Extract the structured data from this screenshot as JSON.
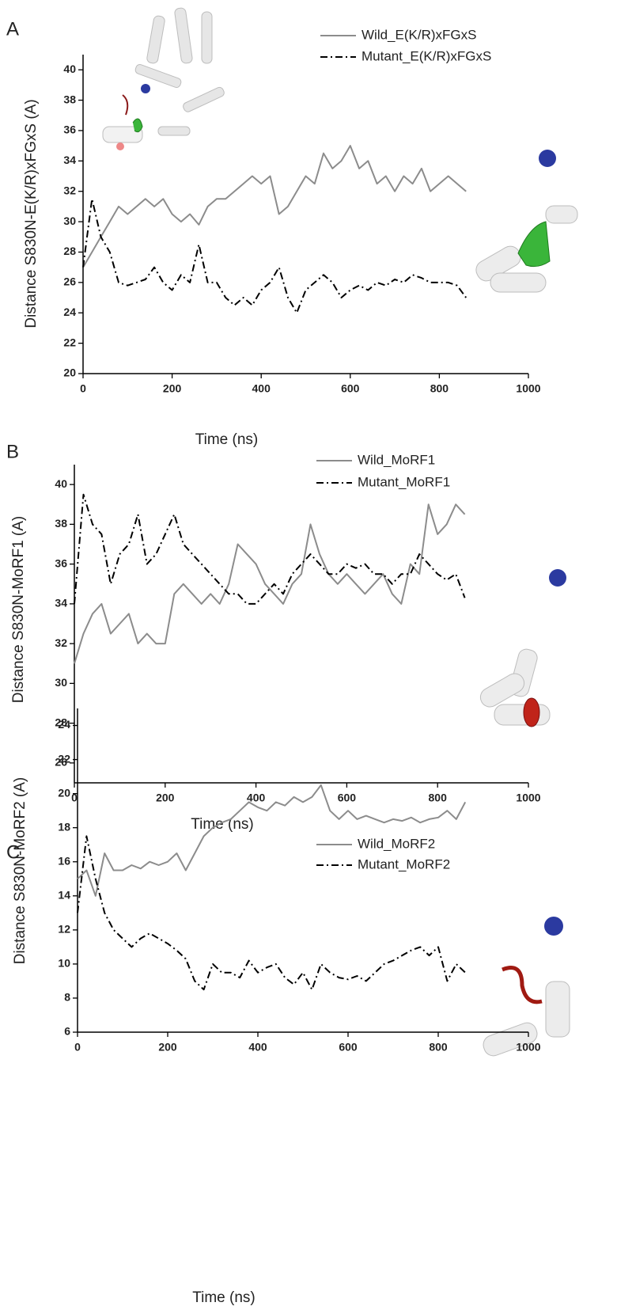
{
  "chart_data": [
    {
      "type": "line",
      "label": "A",
      "x_label": "Time (ns)",
      "y_label": "Distance S830N-E(K/R)xFGxS (A)",
      "xlim": [
        0,
        1000
      ],
      "ylim": [
        20,
        41
      ],
      "xticks": [
        0,
        200,
        400,
        600,
        800,
        1000
      ],
      "yticks": [
        20,
        22,
        24,
        26,
        28,
        30,
        32,
        34,
        36,
        38,
        40
      ],
      "x": [
        0,
        20,
        40,
        60,
        80,
        100,
        120,
        140,
        160,
        180,
        200,
        220,
        240,
        260,
        280,
        300,
        320,
        340,
        360,
        380,
        400,
        420,
        440,
        460,
        480,
        500,
        520,
        540,
        560,
        580,
        600,
        620,
        640,
        660,
        680,
        700,
        720,
        740,
        760,
        780,
        800,
        820,
        840,
        860
      ],
      "series": [
        {
          "name": "Wild_E(K/R)xFGxS",
          "color": "#8c8c8c",
          "style": "solid",
          "values": [
            27,
            28,
            29,
            30,
            31,
            30.5,
            31,
            31.5,
            31,
            31.5,
            30.5,
            30,
            30.5,
            29.8,
            31,
            31.5,
            31.5,
            32,
            32.5,
            33,
            32.5,
            33,
            30.5,
            31,
            32,
            33,
            32.5,
            34.5,
            33.5,
            34,
            35,
            33.5,
            34,
            32.5,
            33,
            32,
            33,
            32.5,
            33.5,
            32,
            32.5,
            33,
            32.5,
            32
          ]
        },
        {
          "name": "Mutant_E(K/R)xFGxS",
          "color": "#000000",
          "style": "dashdot",
          "values": [
            27,
            31.5,
            29,
            28,
            26,
            25.8,
            26,
            26.2,
            27,
            26,
            25.5,
            26.5,
            26,
            28.5,
            26,
            26,
            25,
            24.5,
            25,
            24.5,
            25.5,
            26,
            27,
            25,
            24,
            25.5,
            26,
            26.5,
            26,
            25,
            25.5,
            25.8,
            25.5,
            26,
            25.8,
            26.2,
            26,
            26.5,
            26.3,
            26,
            26,
            26,
            25.8,
            25
          ]
        }
      ]
    },
    {
      "type": "line",
      "label": "B",
      "x_label": "Time (ns)",
      "y_label": "Distance S830N-MoRF1 (A)",
      "xlim": [
        0,
        1000
      ],
      "ylim": [
        25,
        41
      ],
      "xticks": [
        0,
        200,
        400,
        600,
        800,
        1000
      ],
      "yticks": [
        26,
        28,
        30,
        32,
        34,
        36,
        38,
        40
      ],
      "x": [
        0,
        20,
        40,
        60,
        80,
        100,
        120,
        140,
        160,
        180,
        200,
        220,
        240,
        260,
        280,
        300,
        320,
        340,
        360,
        380,
        400,
        420,
        440,
        460,
        480,
        500,
        520,
        540,
        560,
        580,
        600,
        620,
        640,
        660,
        680,
        700,
        720,
        740,
        760,
        780,
        800,
        820,
        840,
        860
      ],
      "series": [
        {
          "name": "Wild_MoRF1",
          "color": "#8c8c8c",
          "style": "solid",
          "values": [
            31,
            32.5,
            33.5,
            34,
            32.5,
            33,
            33.5,
            32,
            32.5,
            32,
            32,
            34.5,
            35,
            34.5,
            34,
            34.5,
            34,
            35,
            37,
            36.5,
            36,
            35,
            34.5,
            34,
            35,
            35.5,
            38,
            36.5,
            35.5,
            35,
            35.5,
            35,
            34.5,
            35,
            35.5,
            34.5,
            34,
            36,
            35.5,
            39,
            37.5,
            38,
            39,
            38.5
          ]
        },
        {
          "name": "Mutant_MoRF1",
          "color": "#000000",
          "style": "dashdot",
          "values": [
            34,
            39.5,
            38,
            37.5,
            35,
            36.5,
            37,
            38.5,
            36,
            36.5,
            37.5,
            38.5,
            37,
            36.5,
            36,
            35.5,
            35,
            34.5,
            34.5,
            34,
            34,
            34.5,
            35,
            34.5,
            35.5,
            36,
            36.5,
            36,
            35.5,
            35.5,
            36,
            35.8,
            36,
            35.5,
            35.5,
            35,
            35.5,
            35.5,
            36.5,
            36,
            35.5,
            35.2,
            35.5,
            34.3
          ]
        }
      ]
    },
    {
      "type": "line",
      "label": "C",
      "x_label": "Time (ns)",
      "y_label": "Distance S830N-MoRF2 (A)",
      "xlim": [
        0,
        1000
      ],
      "ylim": [
        6,
        25
      ],
      "xticks": [
        0,
        200,
        400,
        600,
        800,
        1000
      ],
      "yticks": [
        6,
        8,
        10,
        12,
        14,
        16,
        18,
        20,
        22,
        24
      ],
      "x": [
        0,
        20,
        40,
        60,
        80,
        100,
        120,
        140,
        160,
        180,
        200,
        220,
        240,
        260,
        280,
        300,
        320,
        340,
        360,
        380,
        400,
        420,
        440,
        460,
        480,
        500,
        520,
        540,
        560,
        580,
        600,
        620,
        640,
        660,
        680,
        700,
        720,
        740,
        760,
        780,
        800,
        820,
        840,
        860
      ],
      "series": [
        {
          "name": "Wild_MoRF2",
          "color": "#8c8c8c",
          "style": "solid",
          "values": [
            15,
            15.5,
            14,
            16.5,
            15.5,
            15.5,
            15.8,
            15.6,
            16,
            15.8,
            16,
            16.5,
            15.5,
            16.5,
            17.5,
            18,
            18.3,
            18.5,
            19,
            19.5,
            19.2,
            19,
            19.5,
            19.3,
            19.8,
            19.5,
            19.8,
            20.5,
            19,
            18.5,
            19,
            18.5,
            18.7,
            18.5,
            18.3,
            18.5,
            18.4,
            18.6,
            18.3,
            18.5,
            18.6,
            19,
            18.5,
            19.5
          ]
        },
        {
          "name": "Mutant_MoRF2",
          "color": "#000000",
          "style": "dashdot",
          "values": [
            13,
            17.5,
            15,
            13,
            12,
            11.5,
            11,
            11.5,
            11.8,
            11.5,
            11.2,
            10.8,
            10.3,
            9,
            8.5,
            10,
            9.5,
            9.5,
            9.2,
            10.2,
            9.5,
            9.8,
            10,
            9.2,
            8.8,
            9.5,
            8.5,
            10,
            9.5,
            9.2,
            9.1,
            9.3,
            9,
            9.5,
            10,
            10.2,
            10.5,
            10.8,
            11,
            10.5,
            11,
            9,
            10,
            9.5
          ]
        }
      ]
    }
  ]
}
